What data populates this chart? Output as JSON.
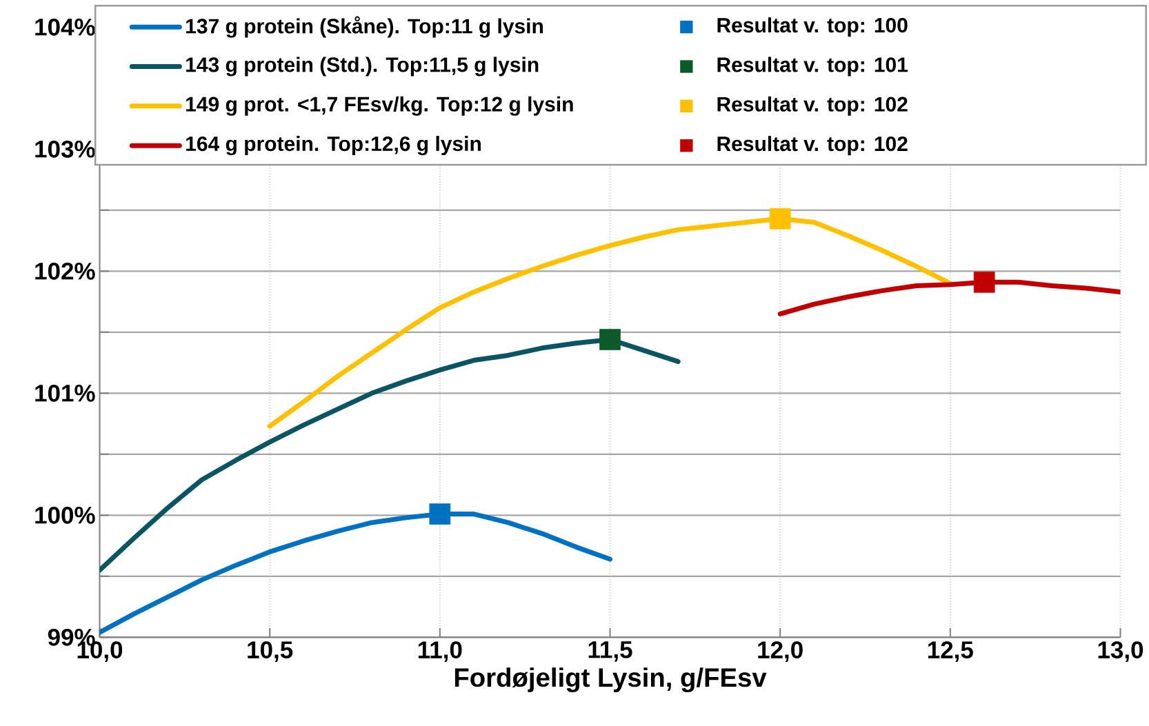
{
  "chart_data": {
    "type": "line",
    "xlabel": "Fordøjeligt Lysin, g/FEsv",
    "xlim": [
      10,
      13
    ],
    "ylim": [
      99,
      104
    ],
    "xticks": [
      {
        "value": 10,
        "label": "10,0"
      },
      {
        "value": 10.5,
        "label": "10,5"
      },
      {
        "value": 11,
        "label": "11,0"
      },
      {
        "value": 11.5,
        "label": "11,5"
      },
      {
        "value": 12,
        "label": "12,0"
      },
      {
        "value": 12.5,
        "label": "12,5"
      },
      {
        "value": 13,
        "label": "13,0"
      }
    ],
    "yticks": [
      {
        "value": 99,
        "label": "99%"
      },
      {
        "value": 99.5,
        "label": null
      },
      {
        "value": 100,
        "label": "100%"
      },
      {
        "value": 100.5,
        "label": null
      },
      {
        "value": 101,
        "label": "101%"
      },
      {
        "value": 101.5,
        "label": null
      },
      {
        "value": 102,
        "label": "102%"
      },
      {
        "value": 102.5,
        "label": null
      },
      {
        "value": 103,
        "label": "103%"
      },
      {
        "value": 104,
        "label": "104%"
      }
    ],
    "grid": true,
    "legend": "top",
    "series": [
      {
        "name": "137 g protein (Skåne). Top:11 g lysin",
        "color": "#0070c0",
        "x": [
          10.0,
          10.1,
          10.2,
          10.3,
          10.4,
          10.5,
          10.6,
          10.7,
          10.8,
          10.9,
          11.0,
          11.1,
          11.2,
          11.3,
          11.4,
          11.5
        ],
        "values": [
          99.04,
          99.19,
          99.33,
          99.47,
          99.59,
          99.7,
          99.79,
          99.87,
          99.94,
          99.98,
          100.01,
          100.01,
          99.94,
          99.85,
          99.74,
          99.64
        ]
      },
      {
        "name": "Resultat v. top: 100",
        "type": "scatter",
        "marker": "square",
        "color": "#0070c0",
        "x": [
          11.0
        ],
        "values": [
          100.01
        ]
      },
      {
        "name": "143 g protein (Std.). Top:11,5 g lysin",
        "color": "#0b5563",
        "x": [
          10.0,
          10.1,
          10.2,
          10.3,
          10.4,
          10.5,
          10.6,
          10.7,
          10.8,
          10.9,
          11.0,
          11.1,
          11.2,
          11.3,
          11.4,
          11.5,
          11.6,
          11.7
        ],
        "values": [
          99.55,
          99.81,
          100.06,
          100.29,
          100.45,
          100.6,
          100.74,
          100.87,
          101.0,
          101.1,
          101.19,
          101.27,
          101.31,
          101.37,
          101.41,
          101.44,
          101.35,
          101.26
        ]
      },
      {
        "name": "Resultat v. top: 101",
        "type": "scatter",
        "marker": "square",
        "color": "#0c5a2a",
        "x": [
          11.5
        ],
        "values": [
          101.44
        ]
      },
      {
        "name": "149 g prot. <1,7 FEsv/kg. Top:12 g lysin",
        "color": "#ffc000",
        "x": [
          10.5,
          10.6,
          10.7,
          10.8,
          10.9,
          11.0,
          11.1,
          11.2,
          11.3,
          11.4,
          11.5,
          11.6,
          11.7,
          11.8,
          11.9,
          12.0,
          12.1,
          12.2,
          12.3,
          12.4,
          12.5
        ],
        "values": [
          100.73,
          100.93,
          101.14,
          101.33,
          101.52,
          101.7,
          101.83,
          101.94,
          102.04,
          102.13,
          102.21,
          102.28,
          102.34,
          102.37,
          102.4,
          102.43,
          102.4,
          102.29,
          102.17,
          102.04,
          101.9
        ]
      },
      {
        "name": "Resultat v. top: 102",
        "type": "scatter",
        "marker": "square",
        "color": "#ffc000",
        "x": [
          12.0
        ],
        "values": [
          102.43
        ]
      },
      {
        "name": "164 g protein. Top:12,6 g lysin",
        "color": "#c00000",
        "x": [
          12.0,
          12.1,
          12.2,
          12.3,
          12.4,
          12.5,
          12.6,
          12.7,
          12.8,
          12.9,
          13.0
        ],
        "values": [
          101.65,
          101.73,
          101.79,
          101.84,
          101.88,
          101.89,
          101.91,
          101.91,
          101.88,
          101.86,
          101.83
        ]
      },
      {
        "name": "Resultat v. top: 102",
        "type": "scatter",
        "marker": "square",
        "color": "#c00000",
        "x": [
          12.6
        ],
        "values": [
          101.91
        ]
      }
    ]
  }
}
